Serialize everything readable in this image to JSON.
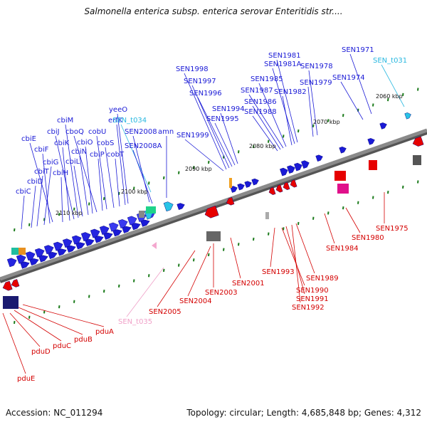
{
  "title": "Salmonella enterica subsp. enterica serovar Enteritidis str....",
  "footer": {
    "accession": "Accession: NC_011294",
    "summary": "Topology: circular; Length: 4,685,848 bp; Genes: 4,312"
  },
  "colors": {
    "forward_strand": "#1a1ad6",
    "reverse_strand": "#e80000",
    "rna": "#29c4e6",
    "pseudo": "#f4a8cf",
    "backbone": "#8a8a8a",
    "tick": "#1a7a1a"
  },
  "axis_ticks": [
    "2060 kbp",
    "2070 kbp",
    "2080 kbp",
    "2090 kbp",
    "2100 kbp",
    "2110 kbp"
  ],
  "top_labels": [
    {
      "text": "cbiC",
      "c": "#1a1ad6"
    },
    {
      "text": "cbiD",
      "c": "#1a1ad6"
    },
    {
      "text": "cbiT",
      "c": "#1a1ad6"
    },
    {
      "text": "cbiG",
      "c": "#1a1ad6"
    },
    {
      "text": "cbiF",
      "c": "#1a1ad6"
    },
    {
      "text": "cbiE",
      "c": "#1a1ad6"
    },
    {
      "text": "cbiH",
      "c": "#1a1ad6"
    },
    {
      "text": "cbiK",
      "c": "#1a1ad6"
    },
    {
      "text": "cbiJ",
      "c": "#1a1ad6"
    },
    {
      "text": "cbiM",
      "c": "#1a1ad6"
    },
    {
      "text": "cbiL",
      "c": "#1a1ad6"
    },
    {
      "text": "cbiN",
      "c": "#1a1ad6"
    },
    {
      "text": "cbiO",
      "c": "#1a1ad6"
    },
    {
      "text": "cboQ",
      "c": "#1a1ad6"
    },
    {
      "text": "cbiP",
      "c": "#1a1ad6"
    },
    {
      "text": "cobU",
      "c": "#1a1ad6"
    },
    {
      "text": "cobS",
      "c": "#1a1ad6"
    },
    {
      "text": "cobT",
      "c": "#1a1ad6"
    },
    {
      "text": "erfK",
      "c": "#1a1ad6"
    },
    {
      "text": "yeeO",
      "c": "#1a1ad6"
    },
    {
      "text": "SEN_t034",
      "c": "#29b8e0"
    },
    {
      "text": "SEN2008",
      "c": "#1a1ad6"
    },
    {
      "text": "SEN2008A",
      "c": "#1a1ad6"
    },
    {
      "text": "amn",
      "c": "#1a1ad6"
    },
    {
      "text": "SEN1999",
      "c": "#1a1ad6"
    },
    {
      "text": "SEN1998",
      "c": "#1a1ad6"
    },
    {
      "text": "SEN1997",
      "c": "#1a1ad6"
    },
    {
      "text": "SEN1996",
      "c": "#1a1ad6"
    },
    {
      "text": "SEN1995",
      "c": "#1a1ad6"
    },
    {
      "text": "SEN1994",
      "c": "#1a1ad6"
    },
    {
      "text": "SEN1988",
      "c": "#1a1ad6"
    },
    {
      "text": "SEN1986",
      "c": "#1a1ad6"
    },
    {
      "text": "SEN1987",
      "c": "#1a1ad6"
    },
    {
      "text": "SEN1985",
      "c": "#1a1ad6"
    },
    {
      "text": "SEN1982",
      "c": "#1a1ad6"
    },
    {
      "text": "SEN1981A",
      "c": "#1a1ad6"
    },
    {
      "text": "SEN1981",
      "c": "#1a1ad6"
    },
    {
      "text": "SEN1979",
      "c": "#1a1ad6"
    },
    {
      "text": "SEN1978",
      "c": "#1a1ad6"
    },
    {
      "text": "SEN1974",
      "c": "#1a1ad6"
    },
    {
      "text": "SEN1971",
      "c": "#1a1ad6"
    },
    {
      "text": "SEN_t031",
      "c": "#29b8e0"
    }
  ],
  "bottom_labels": [
    {
      "text": "pduE",
      "c": "#d40000"
    },
    {
      "text": "pduD",
      "c": "#d40000"
    },
    {
      "text": "pduC",
      "c": "#d40000"
    },
    {
      "text": "pduB",
      "c": "#d40000"
    },
    {
      "text": "pduA",
      "c": "#d40000"
    },
    {
      "text": "SEN_t035",
      "c": "#f0a0c8"
    },
    {
      "text": "SEN2005",
      "c": "#d40000"
    },
    {
      "text": "SEN2004",
      "c": "#d40000"
    },
    {
      "text": "SEN2003",
      "c": "#d40000"
    },
    {
      "text": "SEN2001",
      "c": "#d40000"
    },
    {
      "text": "SEN1993",
      "c": "#d40000"
    },
    {
      "text": "SEN1990",
      "c": "#d40000"
    },
    {
      "text": "SEN1991",
      "c": "#d40000"
    },
    {
      "text": "SEN1992",
      "c": "#d40000"
    },
    {
      "text": "SEN1989",
      "c": "#d40000"
    },
    {
      "text": "SEN1984",
      "c": "#d40000"
    },
    {
      "text": "SEN1980",
      "c": "#d40000"
    },
    {
      "text": "SEN1975",
      "c": "#d40000"
    }
  ]
}
